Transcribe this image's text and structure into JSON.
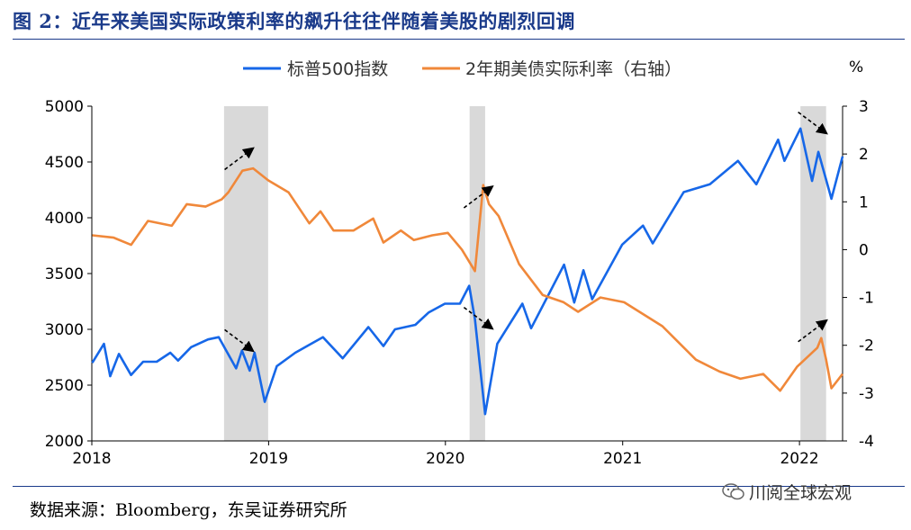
{
  "figure": {
    "title": "图 2：近年来美国实际政策利率的飙升往往伴随着美股的剧烈回调",
    "source": "数据来源：Bloomberg，东吴证券研究所",
    "watermark": "川阅全球宏观",
    "watermark_icon": "wechat-icon"
  },
  "colors": {
    "spx": "#1667e8",
    "real_rate": "#f0883a",
    "shade": "#d9d9d9",
    "title": "#1a3a8a"
  },
  "chart_data": {
    "type": "line",
    "legend_position": "top",
    "right_axis_unit": "%",
    "x_axis": {
      "ticks": [
        "2018",
        "2019",
        "2020",
        "2021",
        "2022"
      ],
      "range": [
        "2018-01-01",
        "2022-03-31"
      ]
    },
    "y_left": {
      "ticks": [
        "2000",
        "2500",
        "3000",
        "3500",
        "4000",
        "4500",
        "5000"
      ],
      "range": [
        2000,
        5000
      ]
    },
    "y_right": {
      "ticks": [
        "-4",
        "-3",
        "-2",
        "-1",
        "0",
        "1",
        "2",
        "3"
      ],
      "range": [
        -4,
        3
      ]
    },
    "shaded_periods": [
      [
        "2018-10-01",
        "2018-12-31"
      ],
      [
        "2020-02-20",
        "2020-03-23"
      ],
      [
        "2022-01-03",
        "2022-02-25"
      ]
    ],
    "series": [
      {
        "name": "标普500指数",
        "axis": "left",
        "points": [
          [
            "2018-01-02",
            2700
          ],
          [
            "2018-01-26",
            2870
          ],
          [
            "2018-02-08",
            2580
          ],
          [
            "2018-02-26",
            2780
          ],
          [
            "2018-03-23",
            2590
          ],
          [
            "2018-04-17",
            2710
          ],
          [
            "2018-05-15",
            2710
          ],
          [
            "2018-06-12",
            2790
          ],
          [
            "2018-06-28",
            2720
          ],
          [
            "2018-07-25",
            2840
          ],
          [
            "2018-08-29",
            2910
          ],
          [
            "2018-09-20",
            2930
          ],
          [
            "2018-10-26",
            2650
          ],
          [
            "2018-11-07",
            2810
          ],
          [
            "2018-11-23",
            2630
          ],
          [
            "2018-12-03",
            2790
          ],
          [
            "2018-12-24",
            2350
          ],
          [
            "2019-01-18",
            2670
          ],
          [
            "2019-02-25",
            2790
          ],
          [
            "2019-04-23",
            2930
          ],
          [
            "2019-06-03",
            2740
          ],
          [
            "2019-07-26",
            3020
          ],
          [
            "2019-08-26",
            2850
          ],
          [
            "2019-09-19",
            3000
          ],
          [
            "2019-10-31",
            3040
          ],
          [
            "2019-11-27",
            3150
          ],
          [
            "2019-12-31",
            3230
          ],
          [
            "2020-01-31",
            3230
          ],
          [
            "2020-02-19",
            3390
          ],
          [
            "2020-03-02",
            3090
          ],
          [
            "2020-03-23",
            2240
          ],
          [
            "2020-04-17",
            2870
          ],
          [
            "2020-06-08",
            3230
          ],
          [
            "2020-06-26",
            3010
          ],
          [
            "2020-09-02",
            3580
          ],
          [
            "2020-09-23",
            3240
          ],
          [
            "2020-10-12",
            3530
          ],
          [
            "2020-10-30",
            3270
          ],
          [
            "2020-12-31",
            3760
          ],
          [
            "2021-02-12",
            3930
          ],
          [
            "2021-03-04",
            3770
          ],
          [
            "2021-05-07",
            4230
          ],
          [
            "2021-06-30",
            4300
          ],
          [
            "2021-08-27",
            4510
          ],
          [
            "2021-10-04",
            4300
          ],
          [
            "2021-11-18",
            4700
          ],
          [
            "2021-12-01",
            4510
          ],
          [
            "2022-01-03",
            4800
          ],
          [
            "2022-01-27",
            4330
          ],
          [
            "2022-02-09",
            4590
          ],
          [
            "2022-03-08",
            4170
          ],
          [
            "2022-03-31",
            4550
          ]
        ]
      },
      {
        "name": "2年期美债实际利率（右轴）",
        "axis": "right",
        "points": [
          [
            "2018-01-02",
            0.3
          ],
          [
            "2018-02-15",
            0.25
          ],
          [
            "2018-03-23",
            0.1
          ],
          [
            "2018-04-27",
            0.6
          ],
          [
            "2018-06-15",
            0.5
          ],
          [
            "2018-07-16",
            0.95
          ],
          [
            "2018-08-24",
            0.9
          ],
          [
            "2018-09-26",
            1.05
          ],
          [
            "2018-10-10",
            1.2
          ],
          [
            "2018-11-08",
            1.65
          ],
          [
            "2018-11-30",
            1.7
          ],
          [
            "2018-12-31",
            1.45
          ],
          [
            "2019-02-11",
            1.2
          ],
          [
            "2019-03-26",
            0.55
          ],
          [
            "2019-04-18",
            0.8
          ],
          [
            "2019-05-15",
            0.4
          ],
          [
            "2019-06-25",
            0.4
          ],
          [
            "2019-08-05",
            0.65
          ],
          [
            "2019-08-26",
            0.15
          ],
          [
            "2019-10-01",
            0.4
          ],
          [
            "2019-10-28",
            0.2
          ],
          [
            "2019-12-05",
            0.3
          ],
          [
            "2020-01-06",
            0.35
          ],
          [
            "2020-02-04",
            0.0
          ],
          [
            "2020-03-02",
            -0.45
          ],
          [
            "2020-03-19",
            1.35
          ],
          [
            "2020-03-31",
            0.95
          ],
          [
            "2020-04-20",
            0.7
          ],
          [
            "2020-06-01",
            -0.3
          ],
          [
            "2020-07-20",
            -0.95
          ],
          [
            "2020-09-01",
            -1.1
          ],
          [
            "2020-10-01",
            -1.3
          ],
          [
            "2020-11-16",
            -1.0
          ],
          [
            "2021-01-04",
            -1.1
          ],
          [
            "2021-03-24",
            -1.6
          ],
          [
            "2021-06-01",
            -2.3
          ],
          [
            "2021-07-20",
            -2.55
          ],
          [
            "2021-09-01",
            -2.7
          ],
          [
            "2021-10-18",
            -2.6
          ],
          [
            "2021-11-22",
            -2.95
          ],
          [
            "2021-12-27",
            -2.45
          ],
          [
            "2022-02-07",
            -2.05
          ],
          [
            "2022-02-15",
            -1.85
          ],
          [
            "2022-02-25",
            -2.3
          ],
          [
            "2022-03-08",
            -2.9
          ],
          [
            "2022-03-31",
            -2.6
          ]
        ]
      }
    ],
    "annotations": [
      {
        "type": "arrow",
        "direction": "up",
        "date": "2018-11-01",
        "axis": "right",
        "value": 1.9
      },
      {
        "type": "arrow",
        "direction": "down",
        "date": "2018-11-01",
        "axis": "left",
        "value": 2900
      },
      {
        "type": "arrow",
        "direction": "up",
        "date": "2020-03-09",
        "axis": "right",
        "value": 1.1
      },
      {
        "type": "arrow",
        "direction": "down",
        "date": "2020-03-09",
        "axis": "left",
        "value": 3100
      },
      {
        "type": "arrow",
        "direction": "up",
        "date": "2022-01-28",
        "axis": "right",
        "value": -1.7
      },
      {
        "type": "arrow",
        "direction": "down",
        "date": "2022-01-28",
        "axis": "left",
        "value": 4850
      }
    ]
  }
}
